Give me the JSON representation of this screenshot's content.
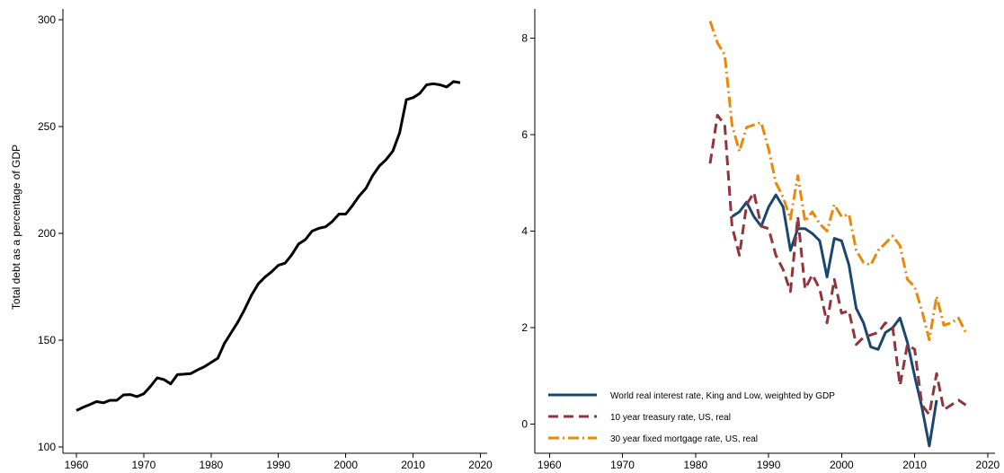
{
  "chart_data": [
    {
      "type": "line",
      "ylabel": "Total debt as a percentage of GDP",
      "xlabel": "",
      "xlim": [
        1958,
        2021
      ],
      "ylim": [
        97,
        305
      ],
      "xticks": [
        1960,
        1970,
        1980,
        1990,
        2000,
        2010,
        2020
      ],
      "yticks": [
        100,
        150,
        200,
        250,
        300
      ],
      "grid": false,
      "series": [
        {
          "color": "#000000",
          "style": "solid",
          "x": [
            1960,
            1961,
            1962,
            1963,
            1964,
            1965,
            1966,
            1967,
            1968,
            1969,
            1970,
            1971,
            1972,
            1973,
            1974,
            1975,
            1976,
            1977,
            1978,
            1979,
            1980,
            1981,
            1982,
            1983,
            1984,
            1985,
            1986,
            1987,
            1988,
            1989,
            1990,
            1991,
            1992,
            1993,
            1994,
            1995,
            1996,
            1997,
            1998,
            1999,
            2000,
            2001,
            2002,
            2003,
            2004,
            2005,
            2006,
            2007,
            2008,
            2009,
            2010,
            2011,
            2012,
            2013,
            2014,
            2015,
            2016,
            2017
          ],
          "values": [
            117,
            118.5,
            119.8,
            121.2,
            120.6,
            121.8,
            121.8,
            124.3,
            124.5,
            123.5,
            124.8,
            128.3,
            132.3,
            131.5,
            129.5,
            133.8,
            134,
            134.3,
            136,
            137.5,
            139.5,
            141.5,
            148.5,
            153.5,
            158.5,
            164.5,
            171,
            176.3,
            179.5,
            182,
            185,
            186,
            190,
            195,
            197,
            201,
            202.3,
            203,
            205.5,
            209,
            209,
            213,
            217.5,
            221,
            227,
            231.5,
            234.5,
            238.5,
            247,
            262.5,
            263.5,
            265.5,
            269.5,
            270,
            269.5,
            268.5,
            271,
            270.5
          ]
        }
      ]
    },
    {
      "type": "line",
      "xlabel": "",
      "ylabel": "",
      "xlim": [
        1958,
        2021
      ],
      "ylim": [
        -0.6,
        8.6
      ],
      "xticks": [
        1960,
        1970,
        1980,
        1990,
        2000,
        2010,
        2020
      ],
      "yticks": [
        0,
        2,
        4,
        6,
        8
      ],
      "grid": false,
      "legend_position": "bottom-left",
      "series": [
        {
          "name": "World real interest rate, King and Low, weighted by GDP",
          "color": "#1a476f",
          "style": "solid",
          "x": [
            1985,
            1986,
            1987,
            1988,
            1989,
            1990,
            1991,
            1992,
            1993,
            1994,
            1995,
            1996,
            1997,
            1998,
            1999,
            2000,
            2001,
            2002,
            2003,
            2004,
            2005,
            2006,
            2007,
            2008,
            2009,
            2010,
            2011,
            2012,
            2013
          ],
          "values": [
            4.3,
            4.4,
            4.6,
            4.3,
            4.1,
            4.5,
            4.75,
            4.5,
            3.6,
            4.05,
            4.05,
            3.95,
            3.8,
            3.05,
            3.85,
            3.8,
            3.3,
            2.4,
            2.1,
            1.6,
            1.55,
            1.9,
            2.0,
            2.2,
            1.7,
            1.0,
            0.35,
            -0.45,
            0.5
          ]
        },
        {
          "name": "10 year treasury rate, US, real",
          "color": "#90353b",
          "style": "dashed",
          "x": [
            1982,
            1983,
            1984,
            1985,
            1986,
            1987,
            1988,
            1989,
            1990,
            1991,
            1992,
            1993,
            1994,
            1995,
            1996,
            1997,
            1998,
            1999,
            2000,
            2001,
            2002,
            2003,
            2004,
            2005,
            2006,
            2007,
            2008,
            2009,
            2010,
            2011,
            2012,
            2013,
            2014,
            2015,
            2016,
            2017
          ],
          "values": [
            5.4,
            6.4,
            6.2,
            4.1,
            3.5,
            4.55,
            4.8,
            4.1,
            4.05,
            3.5,
            3.2,
            2.75,
            4.3,
            2.8,
            3.1,
            2.8,
            2.1,
            3.0,
            2.3,
            2.35,
            1.65,
            1.8,
            1.85,
            1.9,
            2.1,
            2.0,
            0.8,
            1.65,
            1.55,
            0.4,
            0.2,
            1.05,
            0.3,
            0.4,
            0.5,
            0.4
          ]
        },
        {
          "name": "30 year fixed mortgage rate, US, real",
          "color": "#e8890c",
          "style": "dash-dot",
          "x": [
            1982,
            1983,
            1984,
            1985,
            1986,
            1987,
            1988,
            1989,
            1990,
            1991,
            1992,
            1993,
            1994,
            1995,
            1996,
            1997,
            1998,
            1999,
            2000,
            2001,
            2002,
            2003,
            2004,
            2005,
            2006,
            2007,
            2008,
            2009,
            2010,
            2011,
            2012,
            2013,
            2014,
            2015,
            2016,
            2017
          ],
          "values": [
            8.35,
            7.9,
            7.65,
            6.2,
            5.65,
            6.15,
            6.2,
            6.25,
            5.7,
            5.0,
            4.7,
            4.25,
            5.15,
            4.2,
            4.4,
            4.15,
            4.0,
            4.55,
            4.3,
            4.35,
            3.6,
            3.35,
            3.3,
            3.6,
            3.75,
            3.9,
            3.7,
            3.0,
            2.85,
            2.35,
            1.75,
            2.65,
            2.05,
            2.1,
            2.2,
            1.9
          ]
        }
      ]
    }
  ]
}
